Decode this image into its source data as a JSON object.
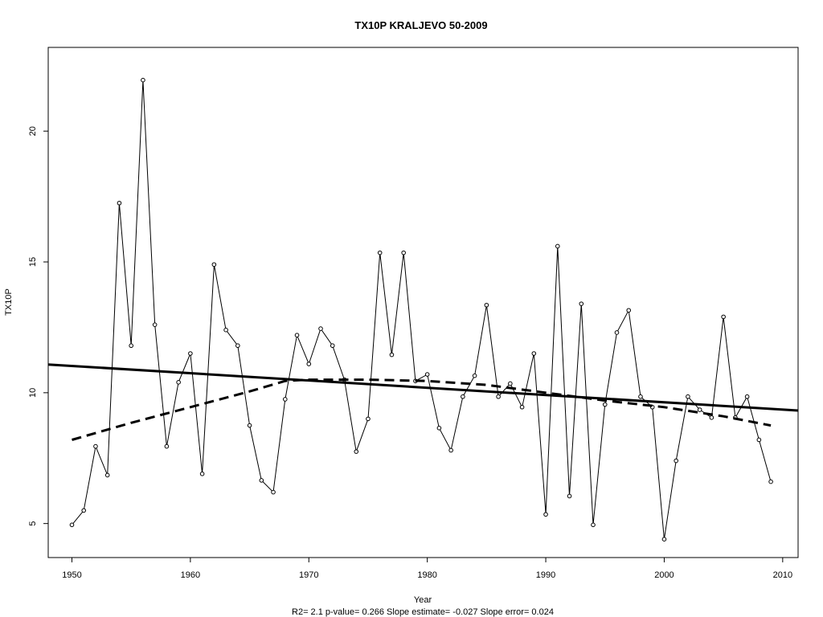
{
  "chart_data": {
    "type": "line",
    "title": "TX10P    KRALJEVO 50-2009",
    "xlabel": "Year",
    "ylabel": "TX10P",
    "stats_caption": "R2= 2.1  p-value= 0.266  Slope estimate= -0.027  Slope error= 0.024",
    "xlim": [
      1948,
      2011.3
    ],
    "ylim": [
      3.7,
      23.2
    ],
    "x_ticks": [
      1950,
      1960,
      1970,
      1980,
      1990,
      2000,
      2010
    ],
    "y_ticks": [
      5,
      10,
      15,
      20
    ],
    "grid": false,
    "legend": "none",
    "series": [
      {
        "style": "line-with-open-points",
        "x": [
          1950,
          1951,
          1952,
          1953,
          1954,
          1955,
          1956,
          1957,
          1958,
          1959,
          1960,
          1961,
          1962,
          1963,
          1964,
          1965,
          1966,
          1967,
          1968,
          1969,
          1970,
          1971,
          1972,
          1973,
          1974,
          1975,
          1976,
          1977,
          1978,
          1979,
          1980,
          1981,
          1982,
          1983,
          1984,
          1985,
          1986,
          1987,
          1988,
          1989,
          1990,
          1991,
          1992,
          1993,
          1994,
          1995,
          1996,
          1997,
          1998,
          1999,
          2000,
          2001,
          2002,
          2003,
          2004,
          2005,
          2006,
          2007,
          2008,
          2009
        ],
        "values": [
          4.95,
          5.5,
          7.95,
          6.85,
          17.25,
          11.8,
          21.95,
          12.6,
          7.95,
          10.4,
          11.5,
          6.9,
          14.9,
          12.4,
          11.8,
          8.75,
          6.65,
          6.2,
          9.75,
          12.2,
          11.1,
          12.45,
          11.8,
          10.5,
          7.75,
          9.0,
          15.35,
          11.45,
          15.35,
          10.45,
          10.7,
          8.65,
          7.8,
          9.85,
          10.65,
          13.35,
          9.85,
          10.35,
          9.45,
          11.5,
          5.35,
          15.6,
          6.05,
          13.4,
          4.95,
          9.55,
          12.3,
          13.15,
          9.85,
          9.45,
          4.4,
          7.4,
          9.85,
          9.35,
          9.05,
          12.9,
          9.05,
          9.85,
          8.2,
          6.6
        ]
      },
      {
        "style": "solid-thick",
        "x": [
          1948,
          2011.3
        ],
        "values": [
          11.08,
          9.32
        ]
      },
      {
        "style": "dashed-thick",
        "x": [
          1950,
          1955,
          1960,
          1965,
          1968,
          1970,
          1975,
          1980,
          1985,
          1990,
          1995,
          2000,
          2005,
          2009
        ],
        "values": [
          8.2,
          8.85,
          9.45,
          10.05,
          10.45,
          10.5,
          10.5,
          10.45,
          10.3,
          10.0,
          9.7,
          9.45,
          9.1,
          8.75
        ]
      }
    ]
  }
}
